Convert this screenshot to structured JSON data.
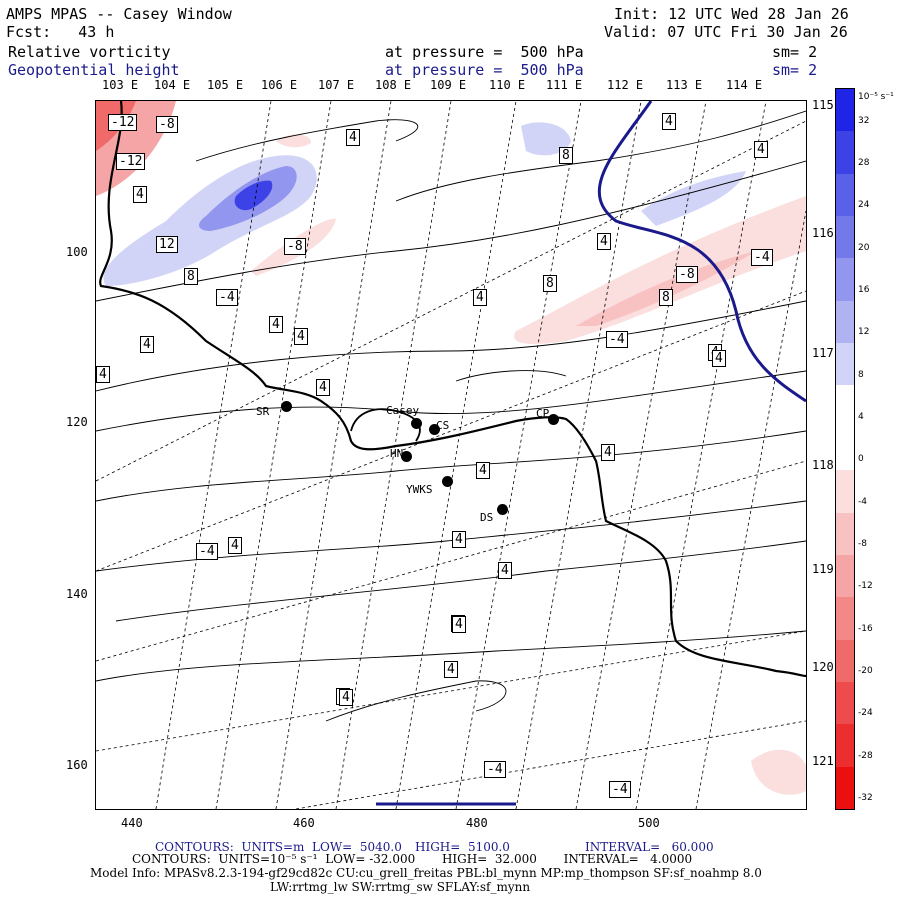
{
  "header": {
    "title": "AMPS MPAS -- Casey Window",
    "fcst": "Fcst:   43 h",
    "init": "Init: 12 UTC Wed 28 Jan 26",
    "valid": "Valid: 07 UTC Fri 30 Jan 26",
    "field1": "Relative vorticity",
    "field1_level": "at pressure =  500 hPa",
    "field1_sm": "sm= 2",
    "field2": "Geopotential height",
    "field2_level": "at pressure =  500 hPa",
    "field2_sm": "sm= 2"
  },
  "lon_top": [
    "103 E",
    "104 E",
    "105 E",
    "106 E",
    "107 E",
    "108 E",
    "109 E",
    "110 E",
    "111 E",
    "112 E",
    "113 E",
    "114 E"
  ],
  "lon_right": [
    "115 E",
    "116 E",
    "117 E",
    "118 E",
    "119 E",
    "120 E",
    "121 E"
  ],
  "y_ticks": [
    "100",
    "120",
    "140",
    "160"
  ],
  "x_ticks": [
    "440",
    "460",
    "480",
    "500"
  ],
  "stations": [
    {
      "name": "SR"
    },
    {
      "name": "Casey"
    },
    {
      "name": "CS"
    },
    {
      "name": "CP"
    },
    {
      "name": "HN"
    },
    {
      "name": "YWKS"
    },
    {
      "name": "DS"
    }
  ],
  "contour_labels": [
    "-12",
    "-8",
    "-12",
    "4",
    "12",
    "8",
    "-8",
    "-4",
    "8",
    "8",
    "4",
    "-8",
    "-4",
    "4",
    "8",
    "4",
    "4",
    "-4",
    "4",
    "4",
    "4",
    "4",
    "4",
    "4",
    "-4",
    "4",
    "4",
    "4",
    "4",
    "4",
    "-4",
    "-4",
    "4",
    "4",
    "4",
    "4",
    "4",
    "4",
    "4"
  ],
  "colorbar": {
    "unit": "10⁻⁵ s⁻¹",
    "labels": [
      "32",
      "28",
      "24",
      "20",
      "16",
      "12",
      "8",
      "4",
      "0",
      "-4",
      "-8",
      "-12",
      "-16",
      "-20",
      "-24",
      "-28",
      "-32"
    ],
    "colors": [
      "#1f25e6",
      "#3c42e6",
      "#5a60e8",
      "#7479ea",
      "#9296ee",
      "#b0b3f2",
      "#d2d4f7",
      "#ffffff",
      "#ffffff",
      "#fbdede",
      "#f8c2c2",
      "#f5a5a5",
      "#f38888",
      "#f06a6a",
      "#ee4c4c",
      "#ec2e2e",
      "#ea1010"
    ]
  },
  "footer": {
    "c1_a": "CONTOURS:  UNITS=m  LOW=  5040.0",
    "c1_b": "HIGH=  5100.0",
    "c1_c": "INTERVAL=   60.000",
    "c2": "CONTOURS:  UNITS=10⁻⁵ s⁻¹  LOW= -32.000       HIGH=  32.000       INTERVAL=   4.0000",
    "model": "Model Info: MPASv8.2.3-194-gf29cd82c CU:cu_grell_freitas PBL:bl_mynn MP:mp_thompson SF:sf_noahmp 8.0",
    "model2": "LW:rrtmg_lw SW:rrtmg_sw SFLAY:sf_mynn"
  }
}
